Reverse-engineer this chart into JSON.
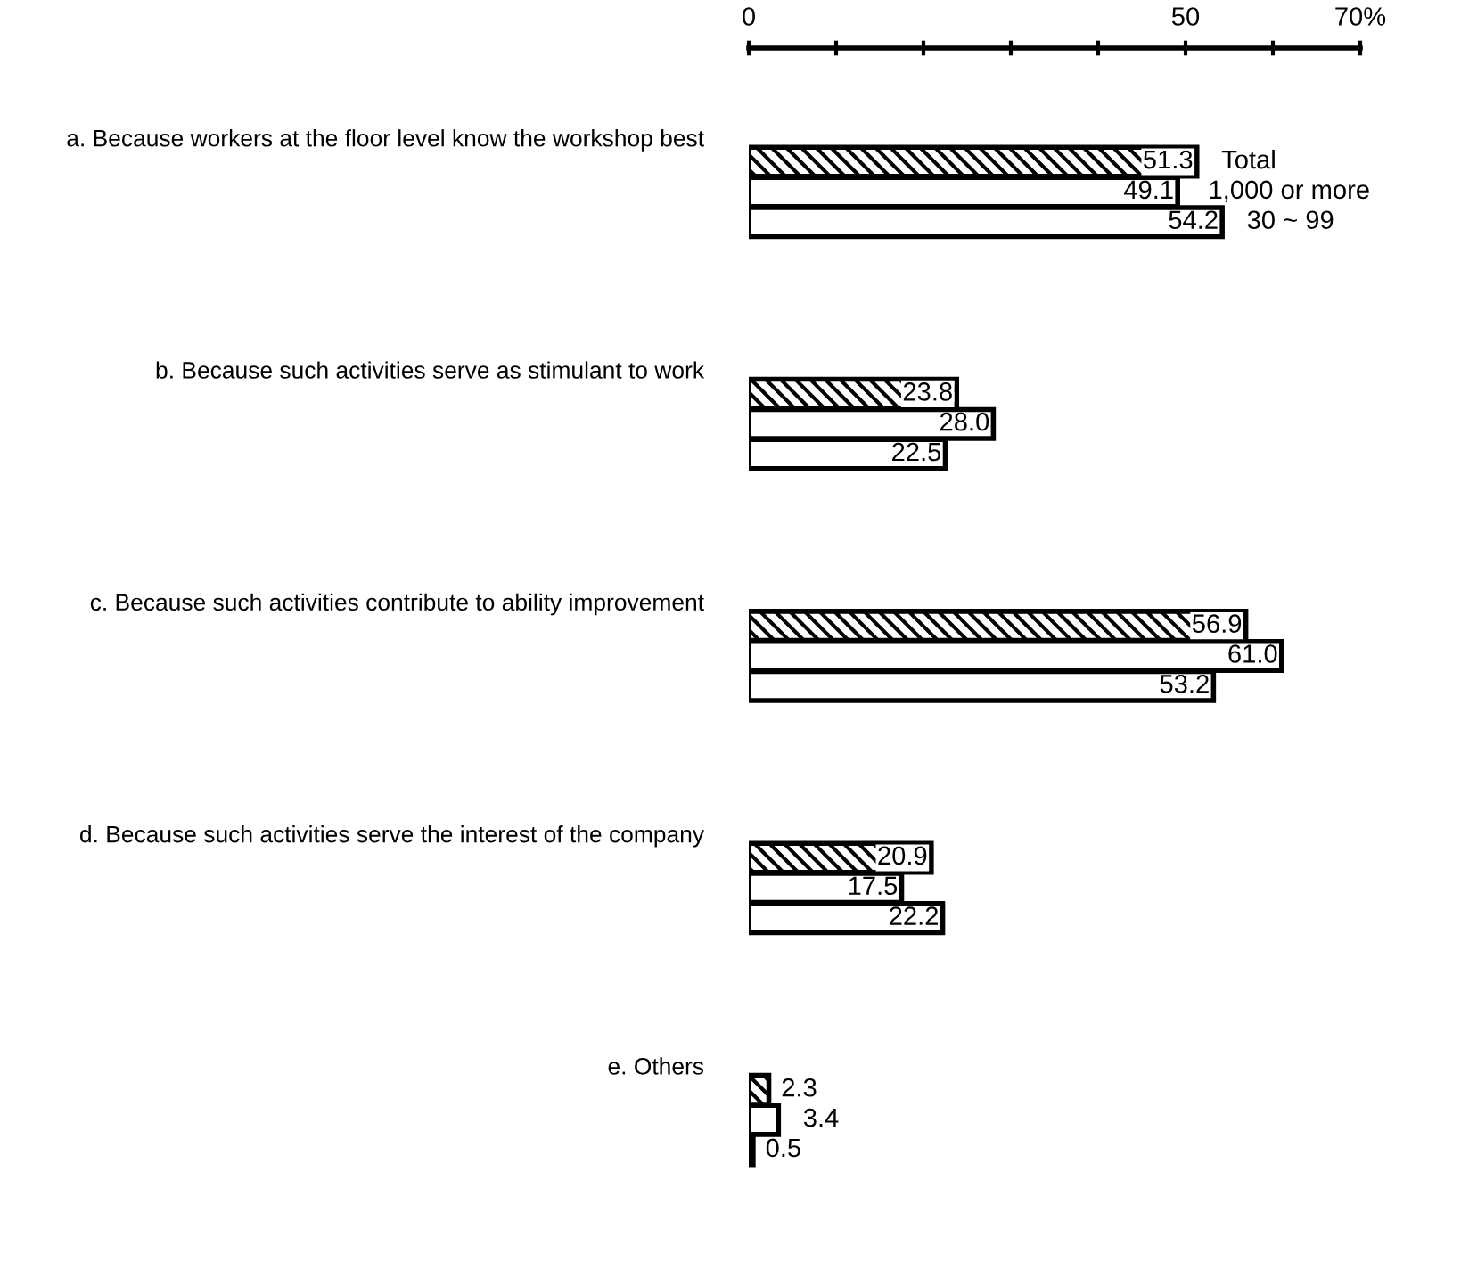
{
  "chart_data": {
    "type": "bar",
    "orientation": "horizontal",
    "categories": [
      "a. Because workers at the floor level know the workshop best",
      "b. Because such activities serve as stimulant to work",
      "c. Because such activities contribute to ability improvement",
      "d. Because such activities serve the interest of the company",
      "e. Others"
    ],
    "series": [
      {
        "name": "Total",
        "color": "#000000",
        "values": [
          51.3,
          23.8,
          56.9,
          20.9,
          2.3
        ],
        "value_labels": [
          "51.3",
          "23.8",
          "56.9",
          "20.9",
          "2.3"
        ]
      },
      {
        "name": "1,000 or more",
        "color": "#ffffff",
        "values": [
          49.1,
          28.0,
          61.0,
          17.5,
          3.4
        ],
        "value_labels": [
          "49.1",
          "28.0",
          "61.0",
          "17.5",
          "3.4"
        ]
      },
      {
        "name": "30 ~ 99",
        "color": "#ffffff",
        "values": [
          54.2,
          22.5,
          53.2,
          22.2,
          0.5
        ],
        "value_labels": [
          "54.2",
          "22.5",
          "53.2",
          "22.2",
          "0.5"
        ]
      }
    ],
    "xlim": [
      0,
      70
    ],
    "xticks": [
      0,
      {
        "value": 10,
        "label": null
      },
      {
        "value": 20,
        "label": null
      },
      {
        "value": 30,
        "label": null
      },
      {
        "value": 40,
        "label": null
      },
      50,
      {
        "value": 60,
        "label": null
      },
      {
        "value": 70,
        "label": "70%"
      }
    ],
    "grid": false
  }
}
